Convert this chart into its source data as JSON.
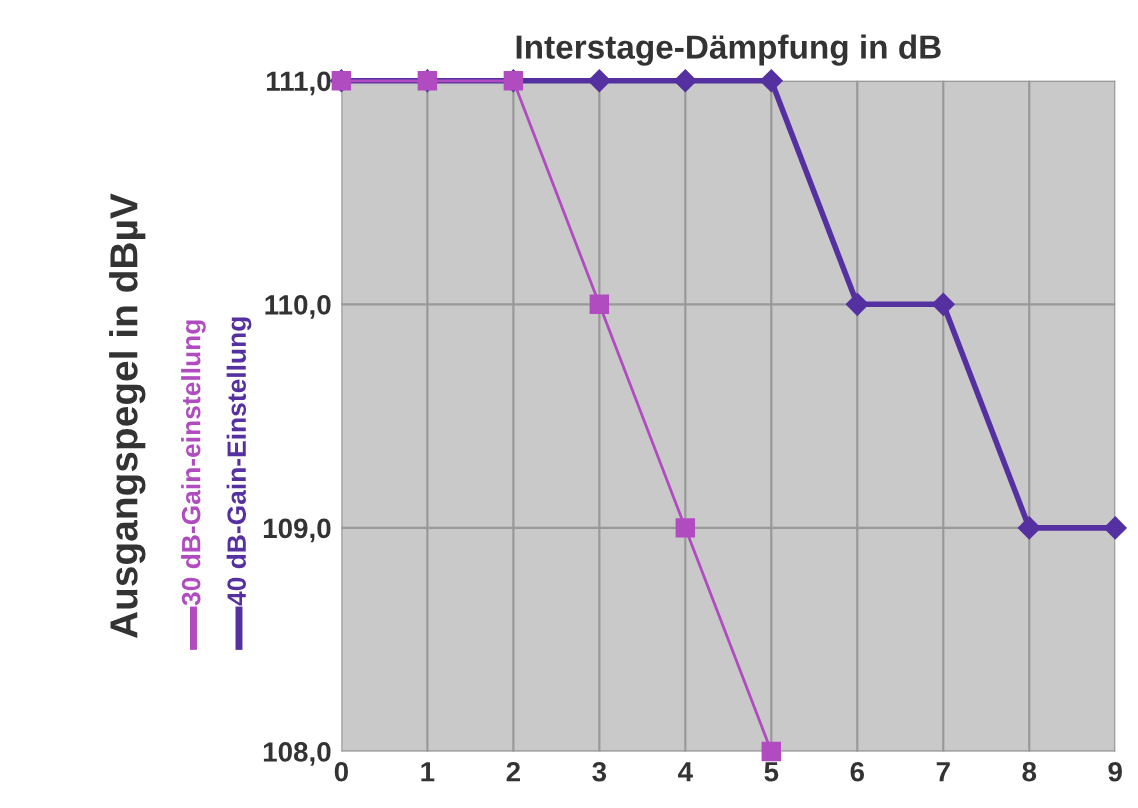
{
  "chart_data": {
    "type": "line",
    "xlabel": "Interstage-Dämpfung in dB",
    "ylabel": "Ausgangspegel in dBµV",
    "xlim": [
      0,
      9
    ],
    "xticks": [
      0,
      1,
      2,
      3,
      4,
      5,
      6,
      7,
      8,
      9
    ],
    "ylim": [
      108,
      111
    ],
    "yticks": [
      {
        "value": 108,
        "label": "108,0"
      },
      {
        "value": 109,
        "label": "109,0"
      },
      {
        "value": 110,
        "label": "110,0"
      },
      {
        "value": 111,
        "label": "111,0"
      }
    ],
    "grid": true,
    "legend": "left",
    "series": [
      {
        "name": "30 dB-Gain-einstellung",
        "color": "#b04cc0",
        "marker": "square",
        "x": [
          0,
          1,
          2,
          3,
          4,
          5
        ],
        "values": [
          111,
          111,
          111,
          110,
          109,
          108
        ]
      },
      {
        "name": "40 dB-Gain-Einstellung",
        "color": "#5530a0",
        "marker": "diamond",
        "x": [
          0,
          1,
          2,
          3,
          4,
          5,
          6,
          7,
          8,
          9
        ],
        "values": [
          111,
          111,
          111,
          111,
          111,
          111,
          110,
          110,
          109,
          109
        ]
      }
    ]
  }
}
